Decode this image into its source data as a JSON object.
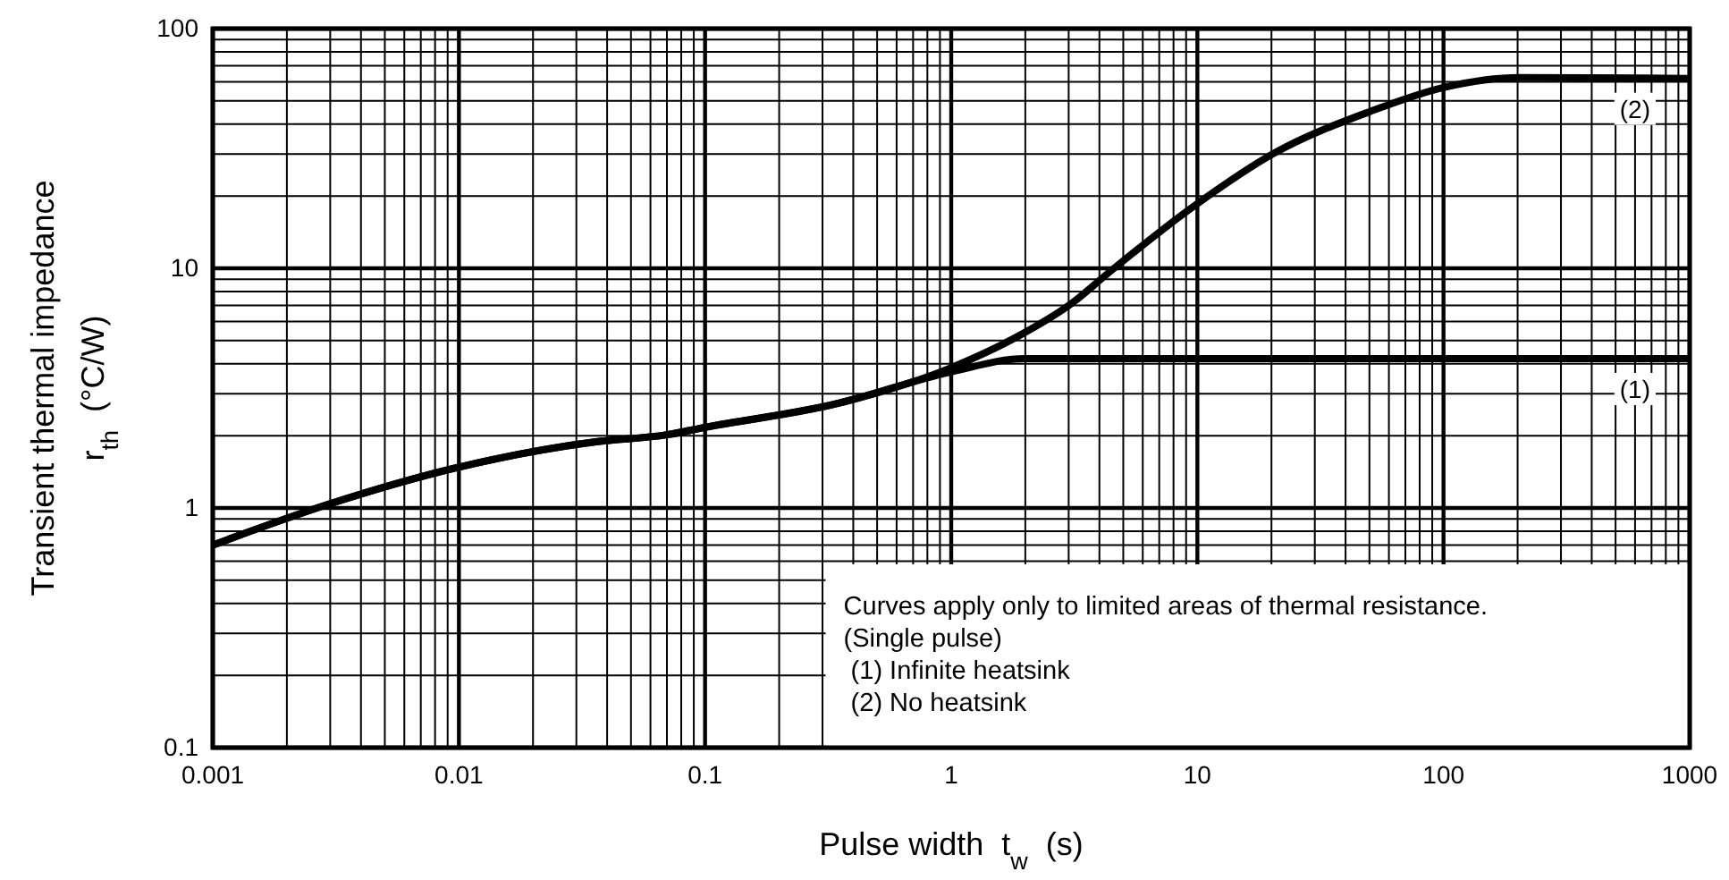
{
  "chart_data": {
    "type": "line",
    "xlabel": "Pulse width  t$_{w}$  (s)",
    "ylabel": "Transient thermal impedance\nr$_{th}$  (°C/W)",
    "log": "xy",
    "grid": true,
    "marker": "none",
    "line_style": "solid",
    "xlim": [
      0.001,
      1000
    ],
    "ylim": [
      0.1,
      100
    ],
    "xticks": [
      0.001,
      0.01,
      0.1,
      1,
      10,
      100,
      1000
    ],
    "yticks": [
      0.1,
      1,
      10,
      100
    ],
    "series": [
      {
        "color": "#000000",
        "x": [
          0.001,
          0.0029,
          0.01,
          0.036,
          0.07,
          0.1,
          0.336,
          1,
          1.99,
          10,
          100,
          1000
        ],
        "values": [
          0.7,
          1.03,
          1.48,
          1.89,
          2.02,
          2.17,
          2.71,
          3.7,
          4.2,
          4.2,
          4.2,
          4.2
        ]
      },
      {
        "color": "#000000",
        "x": [
          0.001,
          0.0029,
          0.01,
          0.036,
          0.07,
          0.1,
          0.336,
          1,
          1.8,
          3.12,
          4.37,
          10,
          20.5,
          50.6,
          100,
          204,
          1000
        ],
        "values": [
          0.7,
          1.03,
          1.48,
          1.89,
          2.02,
          2.17,
          2.71,
          3.85,
          5.1,
          7.2,
          9.6,
          18.6,
          30.2,
          45.2,
          56.8,
          62.5,
          62
        ]
      }
    ],
    "annotations": [
      {
        "text": "(1)",
        "x": 600,
        "y": 4.2
      },
      {
        "text": "(2)",
        "x": 600,
        "y": 62
      },
      "Curves apply only to limited areas of thermal resistance.",
      "(Single pulse)",
      " (1) Infinite heatsink",
      " (2) No heatsink"
    ]
  }
}
